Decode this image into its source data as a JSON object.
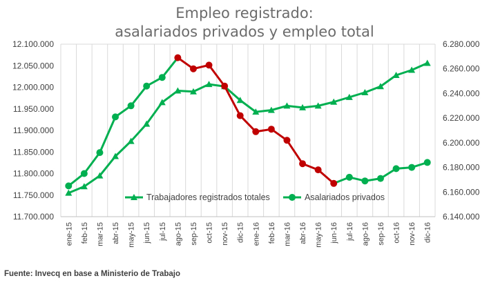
{
  "source_note": "Fuente: Invecq en base a Ministerio de Trabajo",
  "chart_data": {
    "type": "line",
    "title": [
      "Empleo registrado:",
      "asalariados privados y empleo total"
    ],
    "categories": [
      "ene-15",
      "feb-15",
      "mar-15",
      "abr-15",
      "may-15",
      "jun-15",
      "jul-15",
      "ago-15",
      "sep-15",
      "oct-15",
      "nov-15",
      "dic-15",
      "ene-16",
      "feb-16",
      "mar-16",
      "abr-16",
      "may-16",
      "jun-16",
      "jul-16",
      "ago-16",
      "sep-16",
      "oct-16",
      "nov-16",
      "dic-16"
    ],
    "y_left": {
      "min": 11700000,
      "max": 12100000,
      "ticks": [
        11700000,
        11750000,
        11800000,
        11850000,
        11900000,
        11950000,
        12000000,
        12050000,
        12100000
      ],
      "tick_labels": [
        "11.700.000",
        "11.750.000",
        "11.800.000",
        "11.850.000",
        "11.900.000",
        "11.950.000",
        "12.000.000",
        "12.050.000",
        "12.100.000"
      ]
    },
    "y_right": {
      "min": 6140000,
      "max": 6280000,
      "ticks": [
        6140000,
        6160000,
        6180000,
        6200000,
        6220000,
        6240000,
        6260000,
        6280000
      ],
      "tick_labels": [
        "6.140.000",
        "6.160.000",
        "6.180.000",
        "6.200.000",
        "6.220.000",
        "6.240.000",
        "6.260.000",
        "6.280.000"
      ]
    },
    "grid": "vertical",
    "legend": "inside-bottom",
    "series": [
      {
        "name": "Trabajadores registrados totales",
        "axis": "left",
        "marker": "triangle",
        "color": "#00b050",
        "values": [
          11755000,
          11770000,
          11795000,
          11840000,
          11875000,
          11915000,
          11965000,
          11992000,
          11990000,
          12007000,
          12002000,
          11970000,
          11943000,
          11947000,
          11957000,
          11953000,
          11957000,
          11966000,
          11977000,
          11988000,
          12002000,
          12028000,
          12040000,
          12056000
        ]
      },
      {
        "name": "Asalariados privados",
        "axis": "right",
        "marker": "circle",
        "color": "#00b050",
        "decline_color": "#c00000",
        "decline_range": [
          7,
          17
        ],
        "values": [
          6165000,
          6175000,
          6192000,
          6221000,
          6230000,
          6246000,
          6253000,
          6269000,
          6260000,
          6263000,
          6246000,
          6222000,
          6209000,
          6211000,
          6202000,
          6183000,
          6178000,
          6167000,
          6172000,
          6169000,
          6171000,
          6179000,
          6180000,
          6184000
        ]
      }
    ]
  }
}
